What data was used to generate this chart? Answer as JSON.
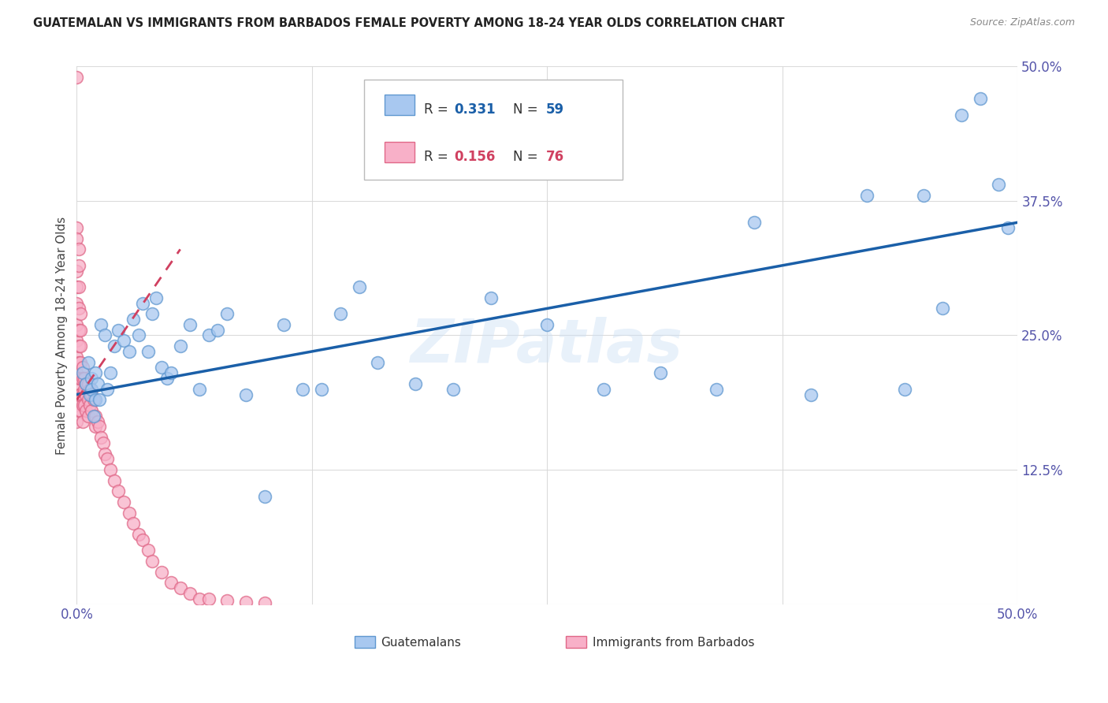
{
  "title": "GUATEMALAN VS IMMIGRANTS FROM BARBADOS FEMALE POVERTY AMONG 18-24 YEAR OLDS CORRELATION CHART",
  "source": "Source: ZipAtlas.com",
  "ylabel": "Female Poverty Among 18-24 Year Olds",
  "xlim": [
    0,
    0.5
  ],
  "ylim": [
    0,
    0.5
  ],
  "xtick_vals": [
    0.0,
    0.125,
    0.25,
    0.375,
    0.5
  ],
  "ytick_vals": [
    0.0,
    0.125,
    0.25,
    0.375,
    0.5
  ],
  "xticklabels": [
    "0.0%",
    "",
    "",
    "",
    "50.0%"
  ],
  "yticklabels": [
    "",
    "12.5%",
    "25.0%",
    "37.5%",
    "50.0%"
  ],
  "watermark": "ZIPatlas",
  "R_blue": 0.331,
  "N_blue": 59,
  "R_pink": 0.156,
  "N_pink": 76,
  "blue_color": "#a8c8f0",
  "blue_edge": "#6098d0",
  "pink_color": "#f8b0c8",
  "pink_edge": "#e06888",
  "trend_blue": "#1a5fa8",
  "trend_pink": "#d04060",
  "background": "#ffffff",
  "grid_color": "#d8d8d8",
  "tick_color": "#5555aa",
  "title_color": "#222222",
  "source_color": "#888888",
  "legend_R_N_color_blue": "#1a5fa8",
  "legend_R_N_color_pink": "#d04060",
  "guatemalan_x": [
    0.003,
    0.005,
    0.006,
    0.007,
    0.008,
    0.008,
    0.009,
    0.01,
    0.01,
    0.011,
    0.012,
    0.013,
    0.015,
    0.016,
    0.018,
    0.02,
    0.022,
    0.025,
    0.028,
    0.03,
    0.033,
    0.035,
    0.038,
    0.04,
    0.042,
    0.045,
    0.048,
    0.05,
    0.055,
    0.06,
    0.065,
    0.07,
    0.075,
    0.08,
    0.09,
    0.1,
    0.11,
    0.12,
    0.13,
    0.14,
    0.15,
    0.16,
    0.18,
    0.2,
    0.22,
    0.25,
    0.28,
    0.31,
    0.34,
    0.36,
    0.39,
    0.42,
    0.44,
    0.45,
    0.46,
    0.47,
    0.48,
    0.49,
    0.495
  ],
  "guatemalan_y": [
    0.215,
    0.205,
    0.225,
    0.195,
    0.21,
    0.2,
    0.175,
    0.19,
    0.215,
    0.205,
    0.19,
    0.26,
    0.25,
    0.2,
    0.215,
    0.24,
    0.255,
    0.245,
    0.235,
    0.265,
    0.25,
    0.28,
    0.235,
    0.27,
    0.285,
    0.22,
    0.21,
    0.215,
    0.24,
    0.26,
    0.2,
    0.25,
    0.255,
    0.27,
    0.195,
    0.1,
    0.26,
    0.2,
    0.2,
    0.27,
    0.295,
    0.225,
    0.205,
    0.2,
    0.285,
    0.26,
    0.2,
    0.215,
    0.2,
    0.355,
    0.195,
    0.38,
    0.2,
    0.38,
    0.275,
    0.455,
    0.47,
    0.39,
    0.35
  ],
  "barbados_x": [
    0.0,
    0.0,
    0.0,
    0.0,
    0.0,
    0.0,
    0.0,
    0.0,
    0.0,
    0.0,
    0.0,
    0.0,
    0.0,
    0.001,
    0.001,
    0.001,
    0.001,
    0.001,
    0.001,
    0.001,
    0.001,
    0.001,
    0.001,
    0.002,
    0.002,
    0.002,
    0.002,
    0.002,
    0.002,
    0.002,
    0.003,
    0.003,
    0.003,
    0.003,
    0.003,
    0.004,
    0.004,
    0.004,
    0.005,
    0.005,
    0.005,
    0.006,
    0.006,
    0.006,
    0.007,
    0.007,
    0.008,
    0.008,
    0.009,
    0.01,
    0.01,
    0.011,
    0.012,
    0.013,
    0.014,
    0.015,
    0.016,
    0.018,
    0.02,
    0.022,
    0.025,
    0.028,
    0.03,
    0.033,
    0.035,
    0.038,
    0.04,
    0.045,
    0.05,
    0.055,
    0.06,
    0.065,
    0.07,
    0.08,
    0.09,
    0.1
  ],
  "barbados_y": [
    0.49,
    0.35,
    0.34,
    0.31,
    0.295,
    0.28,
    0.26,
    0.245,
    0.23,
    0.215,
    0.2,
    0.185,
    0.17,
    0.33,
    0.315,
    0.295,
    0.275,
    0.255,
    0.24,
    0.225,
    0.21,
    0.195,
    0.18,
    0.27,
    0.255,
    0.24,
    0.225,
    0.21,
    0.195,
    0.18,
    0.22,
    0.21,
    0.195,
    0.185,
    0.17,
    0.21,
    0.2,
    0.185,
    0.205,
    0.195,
    0.18,
    0.205,
    0.19,
    0.175,
    0.2,
    0.185,
    0.195,
    0.18,
    0.19,
    0.175,
    0.165,
    0.17,
    0.165,
    0.155,
    0.15,
    0.14,
    0.135,
    0.125,
    0.115,
    0.105,
    0.095,
    0.085,
    0.075,
    0.065,
    0.06,
    0.05,
    0.04,
    0.03,
    0.02,
    0.015,
    0.01,
    0.005,
    0.005,
    0.003,
    0.002,
    0.001
  ],
  "blue_line_x": [
    0.0,
    0.5
  ],
  "blue_line_y": [
    0.195,
    0.355
  ],
  "pink_line_x": [
    0.0,
    0.055
  ],
  "pink_line_y": [
    0.19,
    0.33
  ]
}
